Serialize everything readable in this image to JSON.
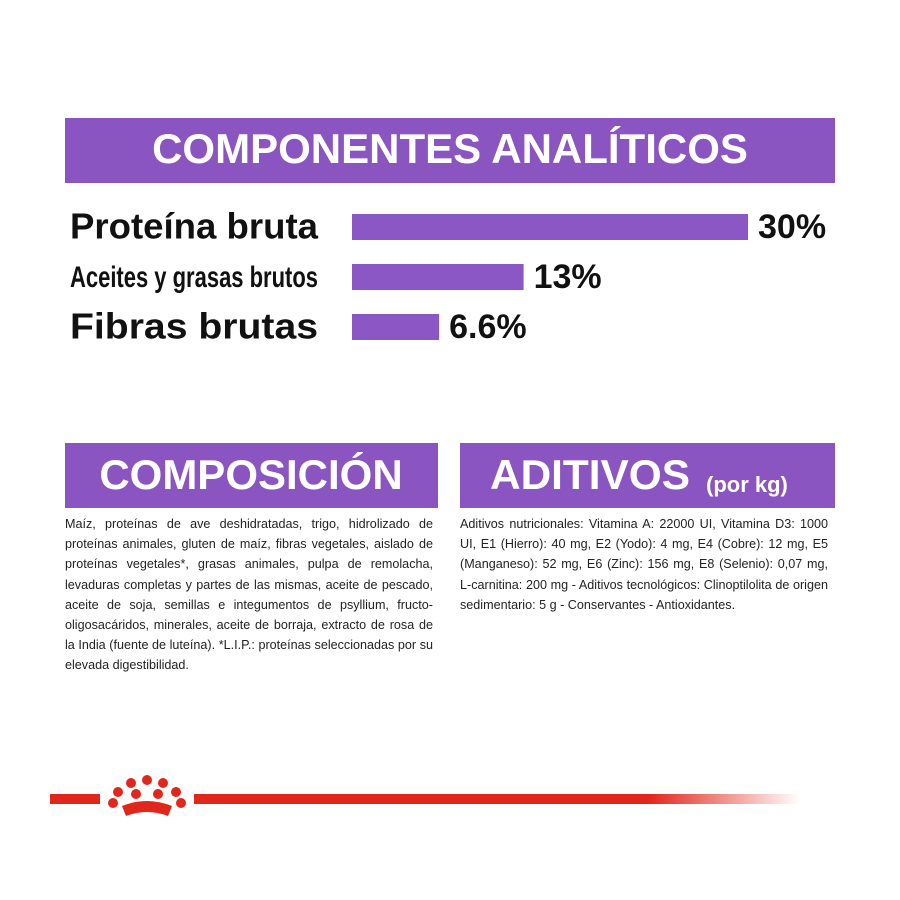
{
  "chart_data": {
    "type": "bar",
    "orientation": "horizontal",
    "title": "COMPONENTES ANALÍTICOS",
    "categories": [
      "Proteína bruta",
      "Aceites y grasas brutos",
      "Fibras brutas"
    ],
    "values": [
      30,
      13,
      6.6
    ],
    "value_labels": [
      "30%",
      "13%",
      "6.6%"
    ],
    "color": "#8b57c4"
  },
  "composition": {
    "title": "COMPOSICIÓN",
    "text": "Maíz, proteínas de ave deshidratadas, trigo, hidrolizado de proteínas animales, gluten de maíz, fibras vegetales, aislado de proteínas vegetales*, grasas animales, pulpa de remolacha, levaduras completas y partes de las mismas, aceite de pescado, aceite de soja, semillas e integumentos de psyllium, fructo-oligosacáridos, minerales, aceite de borraja, extracto de rosa de la India (fuente de luteína). *L.I.P.: proteínas seleccionadas por su elevada digestibilidad."
  },
  "additives": {
    "title": "ADITIVOS",
    "unit": "(por kg)",
    "text": "Aditivos nutricionales: Vitamina A: 22000 UI, Vitamina D3: 1000 UI, E1 (Hierro): 40 mg, E2 (Yodo): 4 mg, E4 (Cobre): 12 mg, E5 (Manganeso): 52 mg, E6 (Zinc): 156 mg, E8 (Selenio): 0,07 mg, L-carnitina: 200 mg - Aditivos tecnológicos: Clinoptilolita de origen sedimentario: 5 g - Conservantes - Antioxidantes."
  }
}
